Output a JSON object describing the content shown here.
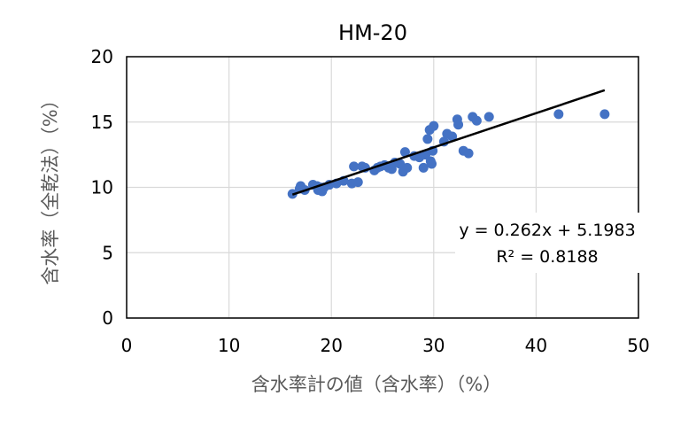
{
  "chart_data": {
    "type": "scatter",
    "title": "HM-20",
    "xlabel": "含水率計の値（含水率）（%）",
    "ylabel": "含水率（全乾法）（%）",
    "xlim": [
      0,
      50
    ],
    "ylim": [
      0,
      20
    ],
    "xticks": [
      "0",
      "10",
      "20",
      "30",
      "40",
      "50"
    ],
    "yticks": [
      "0",
      "5",
      "10",
      "15",
      "20"
    ],
    "grid": true,
    "marker_color": "#4472C4",
    "trendline": {
      "slope": 0.262,
      "intercept": 5.1983,
      "equation": "y = 0.262x + 5.1983",
      "r_squared": "R² = 0.8188",
      "color": "#000000"
    },
    "points": [
      [
        16.2,
        9.5
      ],
      [
        16.9,
        9.9
      ],
      [
        17.0,
        10.1
      ],
      [
        17.4,
        9.8
      ],
      [
        18.2,
        10.2
      ],
      [
        18.6,
        10.1
      ],
      [
        18.7,
        9.8
      ],
      [
        18.9,
        10.0
      ],
      [
        19.1,
        9.7
      ],
      [
        19.3,
        10.0
      ],
      [
        19.8,
        10.2
      ],
      [
        20.5,
        10.3
      ],
      [
        21.2,
        10.5
      ],
      [
        22.0,
        10.3
      ],
      [
        22.2,
        11.6
      ],
      [
        22.6,
        10.4
      ],
      [
        23.0,
        11.6
      ],
      [
        23.3,
        11.5
      ],
      [
        24.2,
        11.3
      ],
      [
        24.5,
        11.5
      ],
      [
        24.8,
        11.6
      ],
      [
        25.2,
        11.7
      ],
      [
        25.6,
        11.5
      ],
      [
        25.9,
        11.4
      ],
      [
        26.2,
        11.9
      ],
      [
        26.7,
        11.8
      ],
      [
        27.0,
        11.2
      ],
      [
        27.2,
        12.7
      ],
      [
        27.4,
        11.5
      ],
      [
        28.1,
        12.4
      ],
      [
        28.6,
        12.3
      ],
      [
        29.0,
        11.5
      ],
      [
        29.2,
        12.5
      ],
      [
        29.4,
        13.7
      ],
      [
        29.6,
        14.4
      ],
      [
        29.7,
        12.0
      ],
      [
        29.8,
        11.8
      ],
      [
        29.9,
        12.8
      ],
      [
        30.0,
        14.7
      ],
      [
        31.0,
        13.5
      ],
      [
        31.3,
        14.1
      ],
      [
        31.8,
        13.9
      ],
      [
        32.3,
        15.2
      ],
      [
        32.4,
        14.8
      ],
      [
        32.9,
        12.8
      ],
      [
        33.4,
        12.6
      ],
      [
        33.8,
        15.4
      ],
      [
        34.2,
        15.1
      ],
      [
        35.4,
        15.4
      ],
      [
        42.2,
        15.6
      ],
      [
        46.7,
        15.6
      ]
    ]
  }
}
